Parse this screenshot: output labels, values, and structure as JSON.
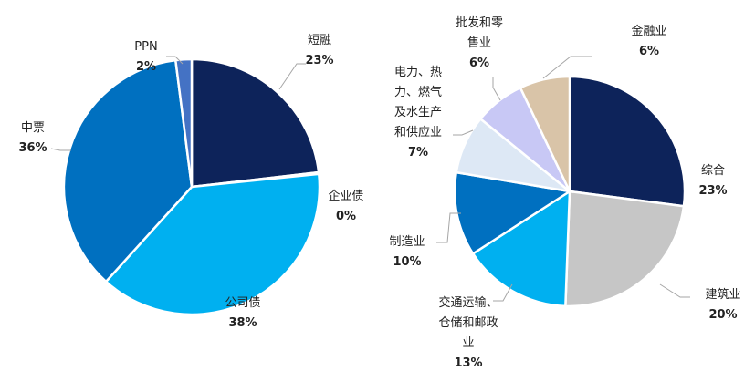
{
  "chart_data": [
    {
      "type": "pie",
      "slices": [
        {
          "label": "短融",
          "pct_text": "23%",
          "value": 23,
          "color": "#0d235a"
        },
        {
          "label": "企业债",
          "pct_text": "0%",
          "value": 0.2,
          "color": "#0d235a"
        },
        {
          "label": "公司债",
          "pct_text": "38%",
          "value": 38,
          "color": "#00b0f0"
        },
        {
          "label": "中票",
          "pct_text": "36%",
          "value": 36,
          "color": "#0070c0"
        },
        {
          "label": "PPN",
          "pct_text": "2%",
          "value": 2,
          "color": "#4472c4"
        }
      ]
    },
    {
      "type": "pie",
      "slices": [
        {
          "label": "综合",
          "pct_text": "23%",
          "value": 23,
          "color": "#0d235a"
        },
        {
          "label": "建筑业",
          "pct_text": "20%",
          "value": 20,
          "color": "#c6c6c6"
        },
        {
          "label": "交通运输、仓储和邮政业",
          "pct_text": "13%",
          "value": 13,
          "color": "#00b0f0"
        },
        {
          "label": "制造业",
          "pct_text": "10%",
          "value": 10,
          "color": "#0070c0"
        },
        {
          "label": "电力、热力、燃气及水生产和供应业",
          "pct_text": "7%",
          "value": 7,
          "color": "#dde8f5"
        },
        {
          "label": "批发和零售业",
          "pct_text": "6%",
          "value": 6,
          "color": "#c8c8f5"
        },
        {
          "label": "金融业",
          "pct_text": "6%",
          "value": 6,
          "color": "#d9c4a8"
        }
      ]
    }
  ]
}
